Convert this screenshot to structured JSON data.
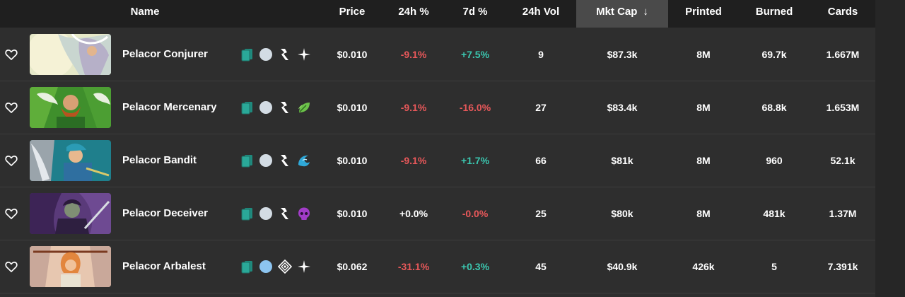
{
  "columns": {
    "name": "Name",
    "price": "Price",
    "change_24h": "24h %",
    "change_7d": "7d %",
    "vol_24h": "24h Vol",
    "mkt_cap": "Mkt Cap",
    "printed": "Printed",
    "burned": "Burned",
    "cards": "Cards"
  },
  "sort": {
    "column": "mkt_cap",
    "direction": "descending",
    "arrow": "↓"
  },
  "colors": {
    "negative": "#e8585a",
    "positive": "#3bc7b0",
    "header_bg": "#1f1f1f",
    "row_bg": "#2e2e2e",
    "sorted_header_bg": "#4a4a4a"
  },
  "rows": [
    {
      "name": "Pelacor Conjurer",
      "price": "$0.010",
      "change_24h": "-9.1%",
      "change_7d": "+7.5%",
      "vol_24h": "9",
      "mkt_cap": "$87.3k",
      "printed": "8M",
      "burned": "69.7k",
      "cards": "1.667M",
      "trend_24h": "neg",
      "trend_7d": "pos",
      "icons": [
        "card-icon",
        "rarity-dot-common-icon",
        "edition-icon",
        "element-neutral-icon"
      ],
      "rarity_color": "#d3dce4"
    },
    {
      "name": "Pelacor Mercenary",
      "price": "$0.010",
      "change_24h": "-9.1%",
      "change_7d": "-16.0%",
      "vol_24h": "27",
      "mkt_cap": "$83.4k",
      "printed": "8M",
      "burned": "68.8k",
      "cards": "1.653M",
      "trend_24h": "neg",
      "trend_7d": "neg",
      "icons": [
        "card-icon",
        "rarity-dot-common-icon",
        "edition-icon",
        "element-earth-icon"
      ],
      "rarity_color": "#d3dce4"
    },
    {
      "name": "Pelacor Bandit",
      "price": "$0.010",
      "change_24h": "-9.1%",
      "change_7d": "+1.7%",
      "vol_24h": "66",
      "mkt_cap": "$81k",
      "printed": "8M",
      "burned": "960",
      "cards": "52.1k",
      "trend_24h": "neg",
      "trend_7d": "pos",
      "icons": [
        "card-icon",
        "rarity-dot-common-icon",
        "edition-icon",
        "element-water-icon"
      ],
      "rarity_color": "#d3dce4"
    },
    {
      "name": "Pelacor Deceiver",
      "price": "$0.010",
      "change_24h": "+0.0%",
      "change_7d": "-0.0%",
      "vol_24h": "25",
      "mkt_cap": "$80k",
      "printed": "8M",
      "burned": "481k",
      "cards": "1.37M",
      "trend_24h": "neu",
      "trend_7d": "neg",
      "icons": [
        "card-icon",
        "rarity-dot-common-icon",
        "edition-icon",
        "element-death-icon"
      ],
      "rarity_color": "#d3dce4"
    },
    {
      "name": "Pelacor Arbalest",
      "price": "$0.062",
      "change_24h": "-31.1%",
      "change_7d": "+0.3%",
      "vol_24h": "45",
      "mkt_cap": "$40.9k",
      "printed": "426k",
      "burned": "5",
      "cards": "7.391k",
      "trend_24h": "neg",
      "trend_7d": "pos",
      "icons": [
        "card-icon",
        "rarity-dot-rare-icon",
        "edition-alt-icon",
        "element-neutral-icon"
      ],
      "rarity_color": "#8cc4f0"
    }
  ]
}
